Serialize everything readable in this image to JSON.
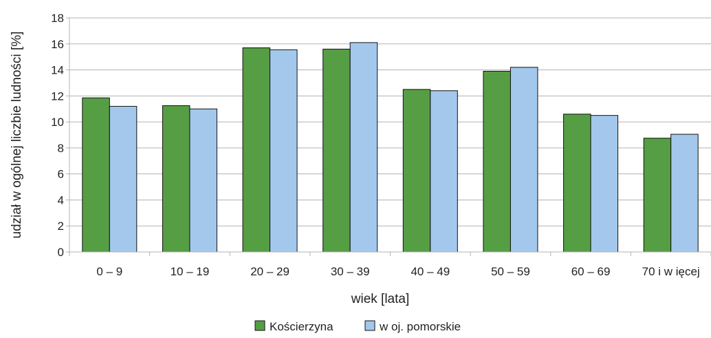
{
  "chart_data": {
    "type": "bar",
    "title": "",
    "xlabel": "wiek [lata]",
    "ylabel": "udział w ogólnej liczbie ludności [%]",
    "ylim": [
      0,
      18
    ],
    "yticks": [
      0,
      2,
      4,
      6,
      8,
      10,
      12,
      14,
      16,
      18
    ],
    "grid": true,
    "legend_position": "bottom",
    "categories": [
      "0 – 9",
      "10 – 19",
      "20 – 29",
      "30 – 39",
      "40 – 49",
      "50 – 59",
      "60 – 69",
      "70 i w ięcej"
    ],
    "series": [
      {
        "name": "Kościerzyna",
        "color": "#559e44",
        "values": [
          11.85,
          11.25,
          15.7,
          15.6,
          12.5,
          13.9,
          10.6,
          8.75
        ]
      },
      {
        "name": "w oj. pomorskie",
        "color": "#a3c8ec",
        "values": [
          11.2,
          11.0,
          15.55,
          16.1,
          12.4,
          14.2,
          10.5,
          9.05
        ]
      }
    ]
  }
}
